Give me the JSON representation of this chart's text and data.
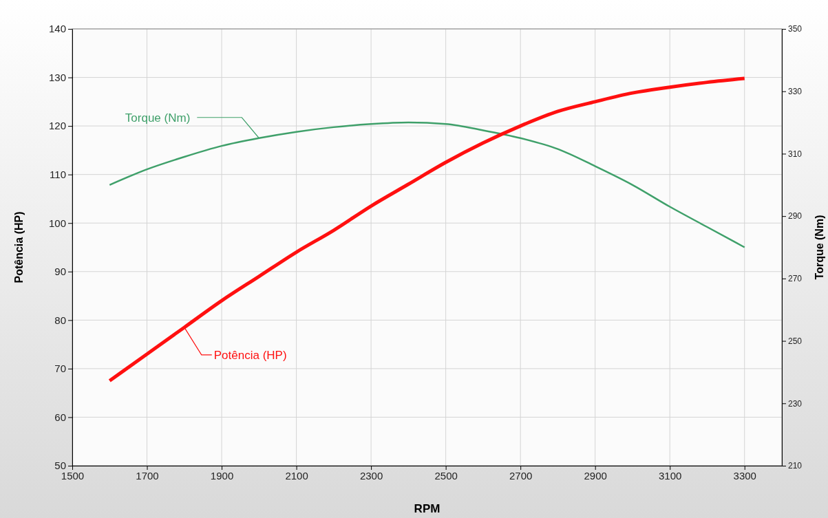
{
  "chart_data": {
    "type": "line",
    "xlabel": "RPM",
    "ylabel": "Potência (HP)",
    "y2label": "Torque (Nm)",
    "x": [
      1600,
      1700,
      1800,
      1900,
      2000,
      2100,
      2200,
      2300,
      2400,
      2500,
      2600,
      2700,
      2800,
      2900,
      3000,
      3100,
      3200,
      3300
    ],
    "xlim": [
      1500,
      3400
    ],
    "xticks": [
      1500,
      1700,
      1900,
      2100,
      2300,
      2500,
      2700,
      2900,
      3100,
      3300
    ],
    "ylim": [
      50,
      140
    ],
    "yticks": [
      50,
      60,
      70,
      80,
      90,
      100,
      110,
      120,
      130,
      140
    ],
    "y2lim": [
      210,
      350
    ],
    "y2ticks": [
      210,
      230,
      250,
      270,
      290,
      310,
      330,
      350
    ],
    "grid": true,
    "legend": false,
    "line_style": "solid",
    "marker": "none",
    "series": [
      {
        "name": "Torque (Nm)",
        "color": "#3fa06a",
        "axis": "y2",
        "values": [
          300,
          305,
          309,
          312.5,
          315,
          317,
          318.5,
          319.5,
          320,
          319.5,
          317.5,
          315,
          311.5,
          306,
          300,
          293,
          286.5,
          280
        ]
      },
      {
        "name": "Potência (HP)",
        "color": "#ff1010",
        "values": [
          67.5,
          73,
          78.5,
          84,
          89,
          94,
          98.5,
          103.5,
          108,
          112.5,
          116.5,
          120,
          123,
          125,
          126.8,
          128,
          129,
          129.8
        ]
      }
    ]
  }
}
